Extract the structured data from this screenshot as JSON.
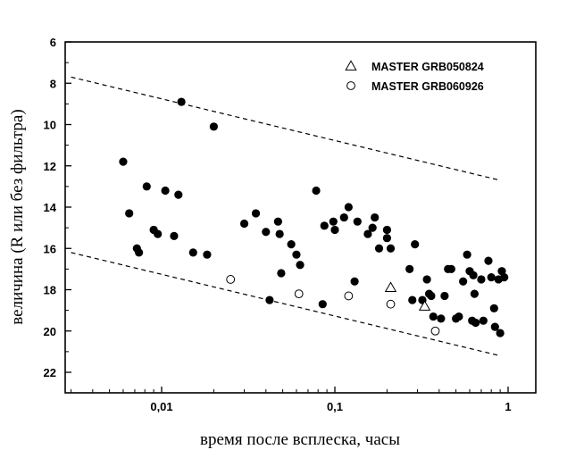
{
  "chart_data": {
    "type": "scatter",
    "title": "",
    "xlabel": "время после всплеска, часы",
    "ylabel": "величина (R или без фильтра)",
    "x_scale": "log",
    "xlim": [
      0.003,
      1.5
    ],
    "ylim": [
      6,
      23
    ],
    "y_inverted": true,
    "grid": false,
    "legend_position": "top-right",
    "x_ticks": [
      {
        "value": 0.01,
        "label": "0,01"
      },
      {
        "value": 0.1,
        "label": "0,1"
      },
      {
        "value": 1,
        "label": "1"
      }
    ],
    "y_ticks": [
      {
        "value": 6,
        "label": "6"
      },
      {
        "value": 8,
        "label": "8"
      },
      {
        "value": 10,
        "label": "10"
      },
      {
        "value": 12,
        "label": "12"
      },
      {
        "value": 14,
        "label": "14"
      },
      {
        "value": 16,
        "label": "16"
      },
      {
        "value": 18,
        "label": "18"
      },
      {
        "value": 20,
        "label": "20"
      },
      {
        "value": 22,
        "label": "22"
      }
    ],
    "series": [
      {
        "name": "",
        "marker": "filled-circle",
        "color": "#000000",
        "points": [
          [
            0.006,
            11.8
          ],
          [
            0.0065,
            14.3
          ],
          [
            0.0072,
            16.0
          ],
          [
            0.0074,
            16.2
          ],
          [
            0.0082,
            13.0
          ],
          [
            0.009,
            15.1
          ],
          [
            0.0095,
            15.3
          ],
          [
            0.0105,
            13.2
          ],
          [
            0.0118,
            15.4
          ],
          [
            0.0125,
            13.4
          ],
          [
            0.013,
            8.9
          ],
          [
            0.0152,
            16.2
          ],
          [
            0.0183,
            16.3
          ],
          [
            0.02,
            10.1
          ],
          [
            0.03,
            14.8
          ],
          [
            0.035,
            14.3
          ],
          [
            0.04,
            15.2
          ],
          [
            0.042,
            18.5
          ],
          [
            0.047,
            14.7
          ],
          [
            0.048,
            15.3
          ],
          [
            0.049,
            17.2
          ],
          [
            0.056,
            15.8
          ],
          [
            0.06,
            16.3
          ],
          [
            0.063,
            16.8
          ],
          [
            0.078,
            13.2
          ],
          [
            0.085,
            18.7
          ],
          [
            0.087,
            14.9
          ],
          [
            0.098,
            14.7
          ],
          [
            0.1,
            15.1
          ],
          [
            0.113,
            14.5
          ],
          [
            0.12,
            14.0
          ],
          [
            0.13,
            17.6
          ],
          [
            0.135,
            14.7
          ],
          [
            0.155,
            15.3
          ],
          [
            0.165,
            15.0
          ],
          [
            0.17,
            14.5
          ],
          [
            0.18,
            16.0
          ],
          [
            0.2,
            15.1
          ],
          [
            0.2,
            15.5
          ],
          [
            0.21,
            16.0
          ],
          [
            0.27,
            17.0
          ],
          [
            0.28,
            18.5
          ],
          [
            0.29,
            15.8
          ],
          [
            0.32,
            18.5
          ],
          [
            0.34,
            17.5
          ],
          [
            0.35,
            18.2
          ],
          [
            0.36,
            18.3
          ],
          [
            0.37,
            19.3
          ],
          [
            0.41,
            19.4
          ],
          [
            0.43,
            18.3
          ],
          [
            0.45,
            17.0
          ],
          [
            0.47,
            17.0
          ],
          [
            0.5,
            19.4
          ],
          [
            0.52,
            19.3
          ],
          [
            0.55,
            17.6
          ],
          [
            0.58,
            16.3
          ],
          [
            0.6,
            17.1
          ],
          [
            0.62,
            19.5
          ],
          [
            0.63,
            17.3
          ],
          [
            0.64,
            18.2
          ],
          [
            0.65,
            19.6
          ],
          [
            0.7,
            17.5
          ],
          [
            0.72,
            19.5
          ],
          [
            0.77,
            16.6
          ],
          [
            0.8,
            17.4
          ],
          [
            0.83,
            18.9
          ],
          [
            0.84,
            19.8
          ],
          [
            0.88,
            17.5
          ],
          [
            0.9,
            20.1
          ],
          [
            0.92,
            17.1
          ],
          [
            0.95,
            17.4
          ]
        ]
      },
      {
        "name": "MASTER GRB050824",
        "marker": "open-triangle",
        "color": "#000000",
        "points": [
          [
            0.21,
            17.9
          ],
          [
            0.33,
            18.8
          ]
        ]
      },
      {
        "name": "MASTER GRB060926",
        "marker": "open-circle",
        "color": "#000000",
        "points": [
          [
            0.025,
            17.5
          ],
          [
            0.062,
            18.2
          ],
          [
            0.12,
            18.3
          ],
          [
            0.21,
            18.7
          ],
          [
            0.38,
            20.0
          ]
        ]
      }
    ],
    "guide_lines": [
      {
        "style": "dashed",
        "from": [
          0.003,
          7.7
        ],
        "to": [
          0.9,
          12.7
        ]
      },
      {
        "style": "dashed",
        "from": [
          0.003,
          16.2
        ],
        "to": [
          0.9,
          21.2
        ]
      }
    ]
  }
}
